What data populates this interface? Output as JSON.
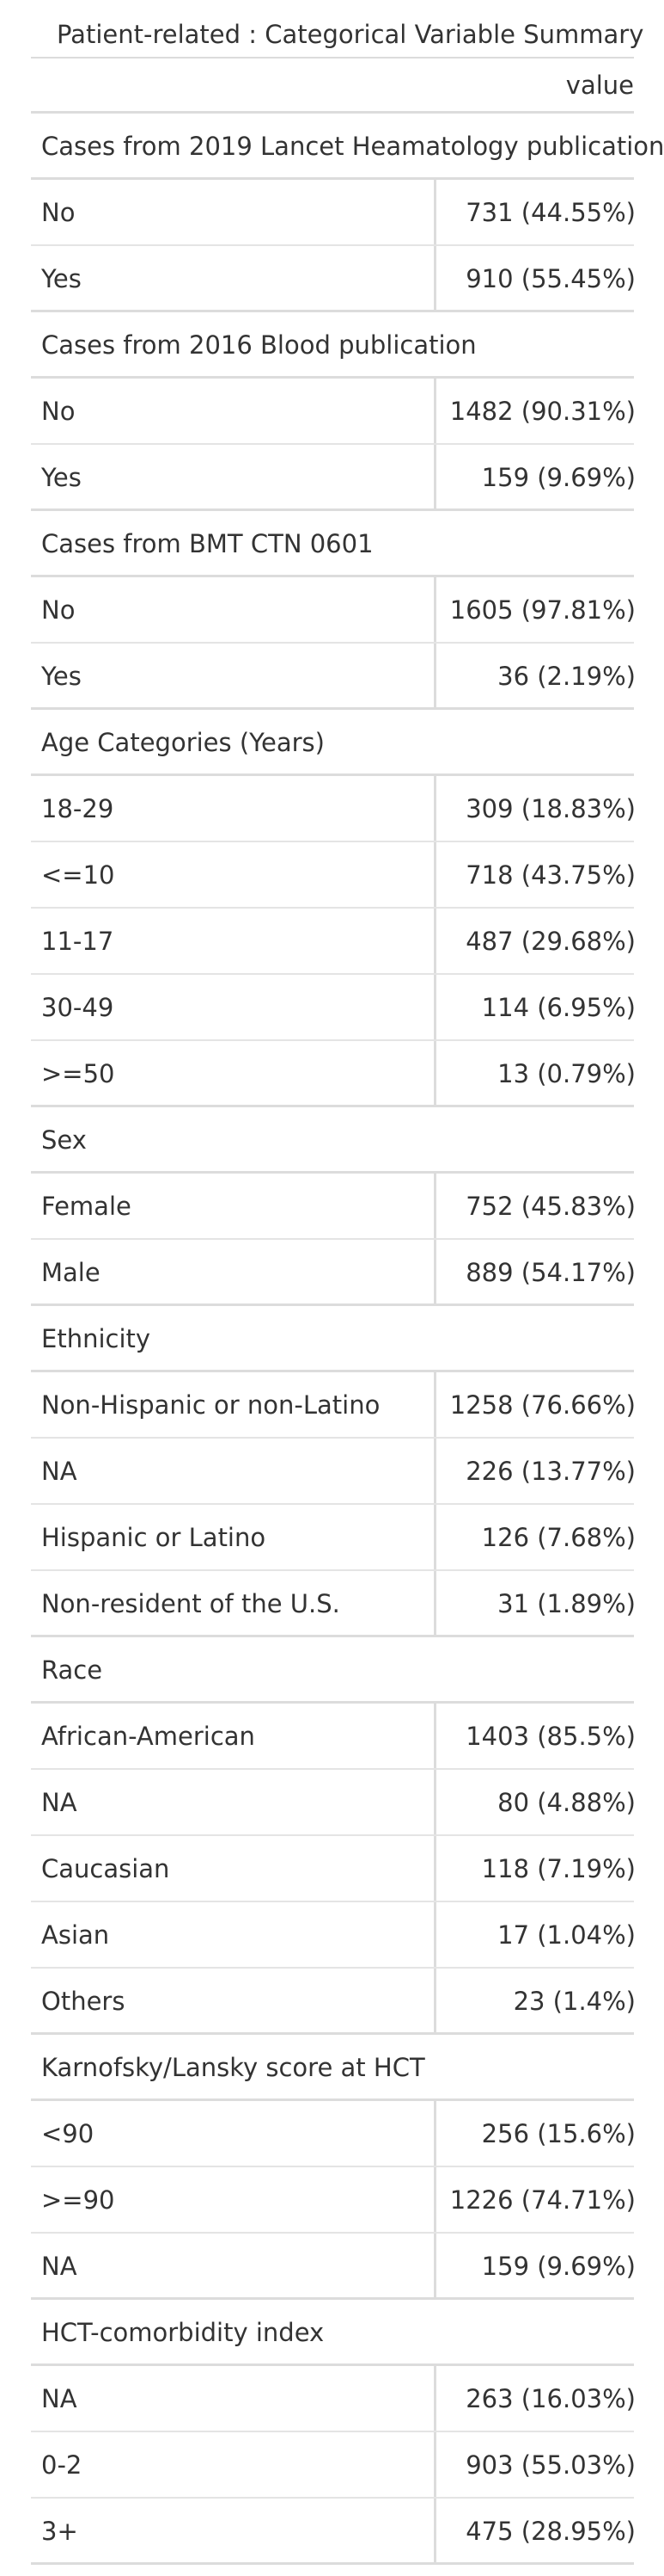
{
  "table": {
    "caption": "Patient-related : Categorical Variable Summary",
    "value_header": "value",
    "groups": [
      {
        "title": "Cases from 2019 Lancet Heamatology publication",
        "rows": [
          {
            "label": "No",
            "value": "731 (44.55%)"
          },
          {
            "label": "Yes",
            "value": "910 (55.45%)"
          }
        ]
      },
      {
        "title": "Cases from 2016 Blood publication",
        "rows": [
          {
            "label": "No",
            "value": "1482 (90.31%)"
          },
          {
            "label": "Yes",
            "value": "159 (9.69%)"
          }
        ]
      },
      {
        "title": "Cases from BMT CTN 0601",
        "rows": [
          {
            "label": "No",
            "value": "1605 (97.81%)"
          },
          {
            "label": "Yes",
            "value": "36 (2.19%)"
          }
        ]
      },
      {
        "title": "Age Categories (Years)",
        "rows": [
          {
            "label": "18-29",
            "value": "309 (18.83%)"
          },
          {
            "label": "<=10",
            "value": "718 (43.75%)"
          },
          {
            "label": "11-17",
            "value": "487 (29.68%)"
          },
          {
            "label": "30-49",
            "value": "114 (6.95%)"
          },
          {
            "label": ">=50",
            "value": "13 (0.79%)"
          }
        ]
      },
      {
        "title": "Sex",
        "rows": [
          {
            "label": "Female",
            "value": "752 (45.83%)"
          },
          {
            "label": "Male",
            "value": "889 (54.17%)"
          }
        ]
      },
      {
        "title": "Ethnicity",
        "rows": [
          {
            "label": "Non-Hispanic or non-Latino",
            "value": "1258 (76.66%)"
          },
          {
            "label": "NA",
            "value": "226 (13.77%)"
          },
          {
            "label": "Hispanic or Latino",
            "value": "126 (7.68%)"
          },
          {
            "label": "Non-resident of the U.S.",
            "value": "31 (1.89%)"
          }
        ]
      },
      {
        "title": "Race",
        "rows": [
          {
            "label": "African-American",
            "value": "1403 (85.5%)"
          },
          {
            "label": "NA",
            "value": "80 (4.88%)"
          },
          {
            "label": "Caucasian",
            "value": "118 (7.19%)"
          },
          {
            "label": "Asian",
            "value": "17 (1.04%)"
          },
          {
            "label": "Others",
            "value": "23 (1.4%)"
          }
        ]
      },
      {
        "title": "Karnofsky/Lansky score at HCT",
        "rows": [
          {
            "label": "<90",
            "value": "256 (15.6%)"
          },
          {
            "label": ">=90",
            "value": "1226 (74.71%)"
          },
          {
            "label": "NA",
            "value": "159 (9.69%)"
          }
        ]
      },
      {
        "title": "HCT-comorbidity index",
        "rows": [
          {
            "label": "NA",
            "value": "263 (16.03%)"
          },
          {
            "label": "0-2",
            "value": "903 (55.03%)"
          },
          {
            "label": "3+",
            "value": "475 (28.95%)"
          }
        ]
      }
    ]
  }
}
